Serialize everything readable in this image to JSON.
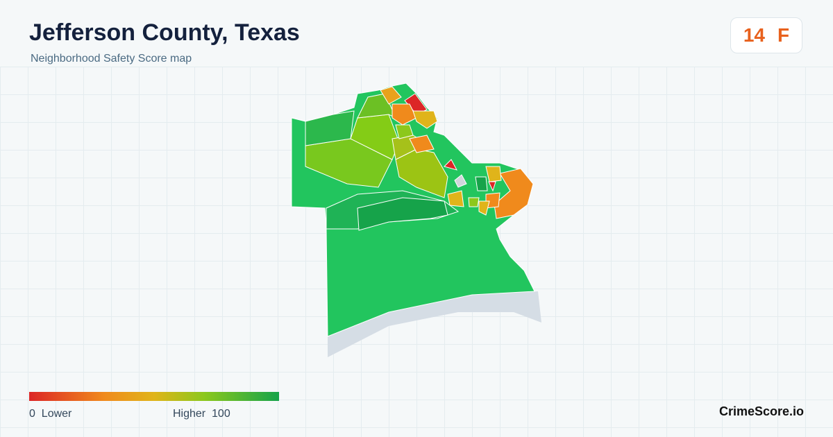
{
  "header": {
    "title": "Jefferson County, Texas",
    "subtitle": "Neighborhood Safety Score map"
  },
  "score": {
    "value": 14,
    "grade": "F"
  },
  "legend": {
    "min": 0,
    "min_label": "Lower",
    "max_label": "Higher",
    "max": 100
  },
  "footer": {
    "brand": "CrimeScore.io"
  }
}
